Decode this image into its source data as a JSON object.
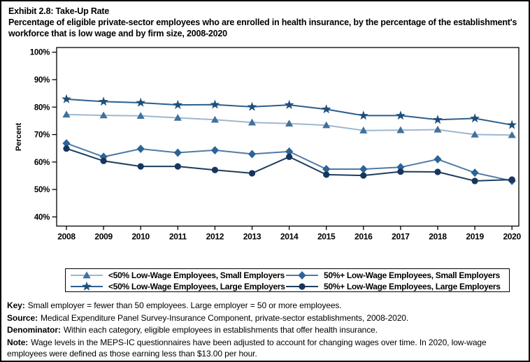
{
  "title": {
    "line1": "Exhibit 2.8: Take-Up Rate",
    "subtitle": "Percentage of eligible private-sector employees who are enrolled in health insurance, by the percentage of the establishment's workforce that is low wage and by firm size, 2008-2020"
  },
  "chart_data": {
    "type": "line",
    "title": "Exhibit 2.8: Take-Up Rate",
    "ylabel": "Percent",
    "ylim": [
      40,
      100
    ],
    "y_tick_step": 10,
    "y_tick_suffix": "%",
    "grid": false,
    "legend_position": "bottom",
    "x": [
      2008,
      2009,
      2010,
      2011,
      2012,
      2013,
      2014,
      2015,
      2016,
      2017,
      2018,
      2019,
      2020
    ],
    "series": [
      {
        "name": "<50% Low-Wage Employees, Small Employers",
        "marker": "triangle",
        "line_color": "#9DB8D2",
        "marker_color": "#41719C",
        "values": [
          77.3,
          77.0,
          76.8,
          76.1,
          75.4,
          74.4,
          74.0,
          73.4,
          71.5,
          71.6,
          71.8,
          70.0,
          69.8
        ]
      },
      {
        "name": "<50% Low-Wage Employees, Large Employers",
        "marker": "star",
        "line_color": "#2D5F8C",
        "marker_color": "#1F4E79",
        "values": [
          82.9,
          82.0,
          81.6,
          80.8,
          80.9,
          80.1,
          80.8,
          79.2,
          76.9,
          76.9,
          75.4,
          75.9,
          73.5
        ]
      },
      {
        "name": "50%+ Low-Wage Employees, Small Employers",
        "marker": "diamond",
        "line_color": "#4F7AA6",
        "marker_color": "#2D6396",
        "values": [
          66.8,
          61.9,
          64.8,
          63.4,
          64.3,
          62.9,
          63.8,
          57.4,
          57.4,
          58.1,
          61.0,
          56.1,
          53.1
        ]
      },
      {
        "name": "50%+ Low-Wage Employees, Large Employers",
        "marker": "circle",
        "line_color": "#1E3D5C",
        "marker_color": "#16365D",
        "values": [
          64.9,
          60.4,
          58.4,
          58.4,
          57.1,
          55.9,
          61.9,
          55.4,
          55.1,
          56.5,
          56.4,
          53.1,
          53.6
        ]
      }
    ]
  },
  "footnotes": [
    {
      "label": "Key:",
      "text": "Small employer = fewer than 50 employees. Large employer = 50 or more employees."
    },
    {
      "label": "Source:",
      "text": "Medical Expenditure Panel Survey-Insurance Component, private-sector establishments, 2008-2020."
    },
    {
      "label": "Denominator:",
      "text": "Within each category, eligible employees in establishments that offer health insurance."
    },
    {
      "label": "Note:",
      "text": "Wage levels in the MEPS-IC questionnaires have been adjusted to account for changing wages over time. In 2020, low-wage employees were defined as those earning less than $13.00 per hour."
    }
  ],
  "colors": {
    "frame": "#000000",
    "background": "#FFFFFF",
    "text": "#000000"
  }
}
